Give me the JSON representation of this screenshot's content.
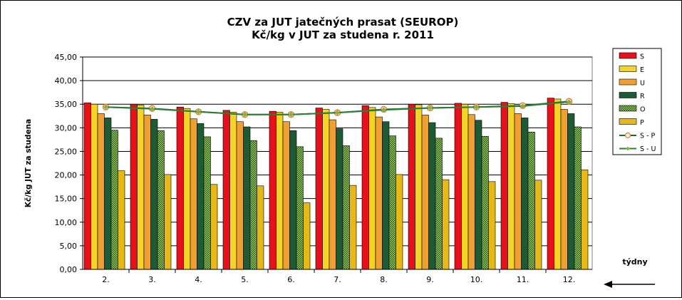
{
  "chart_data": {
    "type": "bar",
    "title": "CZV za JUT jatečných prasat (SEUROP)",
    "subtitle": "Kč/kg v JUT za studena r. 2011",
    "ylabel": "Kč/kg  JUT za studena",
    "xlabel": "týdny",
    "ylim": [
      0,
      45
    ],
    "y_ticks": [
      "0,00",
      "5,00",
      "10,00",
      "15,00",
      "20,00",
      "25,00",
      "30,00",
      "35,00",
      "40,00",
      "45,00"
    ],
    "categories": [
      "2.",
      "3.",
      "4.",
      "5.",
      "6.",
      "7.",
      "8.",
      "9.",
      "10.",
      "11.",
      "12."
    ],
    "grid": true,
    "legend_position": "right",
    "series": [
      {
        "name": "S",
        "kind": "bar",
        "color": "#e8101a",
        "values": [
          35.3,
          35.0,
          34.4,
          33.7,
          33.5,
          34.2,
          34.7,
          35.0,
          35.2,
          35.4,
          36.3
        ]
      },
      {
        "name": "E",
        "kind": "bar",
        "color": "#f5d327",
        "values": [
          35.0,
          34.8,
          34.1,
          33.3,
          33.3,
          33.9,
          34.3,
          34.9,
          35.0,
          35.1,
          36.1
        ]
      },
      {
        "name": "U",
        "kind": "bar",
        "color": "#f0a030",
        "values": [
          33.0,
          32.7,
          31.9,
          31.3,
          31.3,
          31.7,
          32.3,
          32.7,
          32.8,
          33.0,
          33.9
        ]
      },
      {
        "name": "R",
        "kind": "bar",
        "color": "#1e5a33",
        "values": [
          32.1,
          31.8,
          30.9,
          30.2,
          29.4,
          29.8,
          31.3,
          31.1,
          31.6,
          32.1,
          33.0
        ]
      },
      {
        "name": "O",
        "kind": "bar",
        "color": "#6a9a3a",
        "values": [
          29.5,
          29.4,
          28.1,
          27.3,
          26.0,
          26.2,
          28.3,
          27.8,
          28.2,
          29.1,
          30.2
        ]
      },
      {
        "name": "P",
        "kind": "bar",
        "color": "#e6b818",
        "values": [
          20.9,
          20.1,
          18.0,
          17.7,
          14.1,
          17.8,
          20.1,
          19.0,
          18.6,
          18.9,
          21.1
        ]
      },
      {
        "name": "S - P",
        "kind": "line",
        "color": "#e08040",
        "values": [
          34.4,
          34.1,
          33.4,
          32.8,
          32.8,
          33.2,
          33.9,
          34.2,
          34.4,
          34.7,
          35.6
        ]
      },
      {
        "name": "S - U",
        "kind": "line",
        "color": "#2e7d32",
        "values": [
          34.4,
          34.0,
          33.4,
          32.8,
          32.8,
          33.2,
          33.8,
          34.2,
          34.4,
          34.6,
          35.5
        ]
      }
    ]
  },
  "colors": {
    "plot_background": "#ffffff",
    "grid": "#000000",
    "arrow": "#000000"
  }
}
